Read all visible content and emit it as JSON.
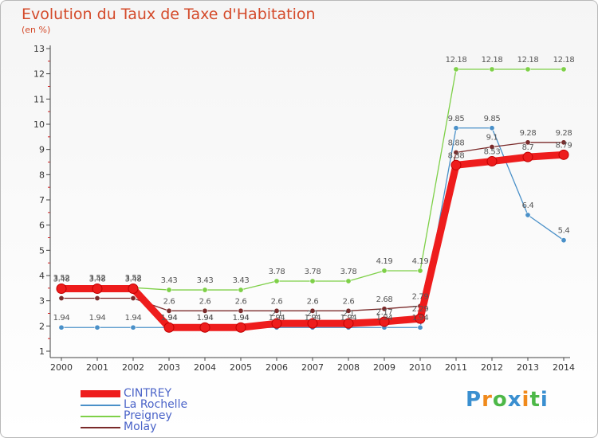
{
  "chart_data": {
    "type": "line",
    "title": "Evolution du Taux de Taxe d'Habitation",
    "ylabel": "(en %)",
    "xlabel": "",
    "x": [
      2000,
      2001,
      2002,
      2003,
      2004,
      2005,
      2006,
      2007,
      2008,
      2009,
      2010,
      2011,
      2012,
      2013,
      2014
    ],
    "ylim": [
      1,
      13
    ],
    "yticks": [
      1,
      2,
      3,
      4,
      5,
      6,
      7,
      8,
      9,
      10,
      11,
      12,
      13
    ],
    "grid": false,
    "legend_position": "bottom-left",
    "series": [
      {
        "name": "CINTREY",
        "color": "#ee1c1c",
        "values": [
          3.48,
          3.48,
          3.48,
          1.94,
          1.94,
          1.94,
          2.1,
          2.1,
          2.1,
          2.17,
          2.29,
          8.38,
          8.53,
          8.7,
          8.79
        ],
        "labels": [
          "3.48",
          "3.48",
          "3.48",
          "1.94",
          "1.94",
          "1.94",
          "2.1",
          "2.1",
          "2.1",
          "2.17",
          "2.29",
          "8.38",
          "8.53",
          "8.7",
          "8.79"
        ]
      },
      {
        "name": "La Rochelle",
        "color": "#4a90c8",
        "values": [
          1.94,
          1.94,
          1.94,
          1.94,
          1.94,
          1.94,
          1.94,
          1.94,
          1.94,
          1.94,
          1.94,
          9.85,
          9.85,
          6.4,
          5.4
        ],
        "labels": [
          "1.94",
          "1.94",
          "1.94",
          "1.94",
          "1.94",
          "1.94",
          "1.94",
          "1.94",
          "1.94",
          "1.94",
          "1.94",
          "9.85",
          "9.85",
          "6.4",
          "5.4"
        ]
      },
      {
        "name": "Preigney",
        "color": "#7ed048",
        "values": [
          3.52,
          3.52,
          3.52,
          3.43,
          3.43,
          3.43,
          3.78,
          3.78,
          3.78,
          4.19,
          4.19,
          12.18,
          12.18,
          12.18,
          12.18
        ],
        "labels": [
          "3.52",
          "3.52",
          "3.52",
          "3.43",
          "3.43",
          "3.43",
          "3.78",
          "3.78",
          "3.78",
          "4.19",
          "4.19",
          "12.18",
          "12.18",
          "12.18",
          "12.18"
        ]
      },
      {
        "name": "Molay",
        "color": "#7a2a2a",
        "values": [
          3.1,
          3.1,
          3.1,
          2.6,
          2.6,
          2.6,
          2.6,
          2.6,
          2.6,
          2.68,
          2.79,
          8.88,
          9.1,
          9.28,
          9.28
        ],
        "labels": [
          "",
          "",
          "",
          "2.6",
          "2.6",
          "2.6",
          "2.6",
          "2.6",
          "2.6",
          "2.68",
          "2.79",
          "8.88",
          "9.1",
          "9.28",
          "9.28"
        ]
      }
    ]
  },
  "logo": {
    "text": "Proxiti",
    "letters": [
      "P",
      "r",
      "o",
      "x",
      "i",
      "t",
      "i"
    ],
    "colors": [
      "#3a8fd0",
      "#f08a1c",
      "#4db848",
      "#3a8fd0",
      "#f08a1c",
      "#4db848",
      "#3a8fd0"
    ]
  }
}
